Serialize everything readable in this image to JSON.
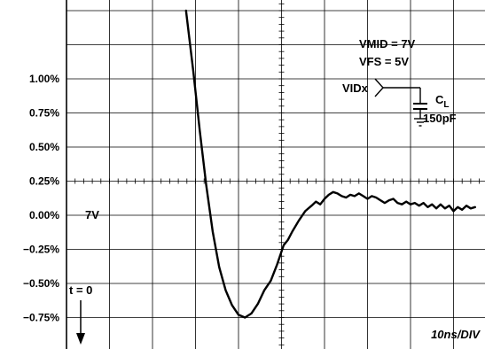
{
  "chart_data": {
    "type": "line",
    "title": "",
    "xlabel": "",
    "ylabel": "",
    "x_unit": "ns",
    "x_per_division": 10,
    "xlim": [
      0,
      95
    ],
    "ylim": [
      -0.875,
      1.5
    ],
    "y_ticks": [
      1.0,
      0.75,
      0.5,
      0.25,
      0.0,
      -0.25,
      -0.5,
      -0.75
    ],
    "y_tick_labels": [
      "1.00%",
      "0.75%",
      "0.50%",
      "0.25%",
      "0.00%",
      "-0.25%",
      "-0.50%",
      "-0.75%"
    ],
    "grid": true,
    "series": [
      {
        "name": "",
        "x": [
          27.8,
          29.5,
          31.0,
          32.5,
          34.0,
          35.5,
          37.0,
          38.5,
          40.0,
          41.5,
          43.0,
          44.5,
          46.0,
          47.5,
          49.0,
          50.5,
          51.5,
          52.5,
          54.0,
          55.5,
          57.0,
          58.0,
          59.0,
          60.0,
          61.0,
          62.0,
          63.0,
          64.0,
          65.0,
          66.0,
          67.0,
          68.0,
          69.0,
          70.0,
          71.0,
          72.0,
          73.0,
          74.0,
          75.0,
          76.0,
          77.0,
          78.0,
          79.0,
          80.0,
          81.0,
          82.0,
          83.0,
          84.0,
          85.0,
          86.0,
          87.0,
          88.0,
          89.0,
          90.0,
          91.0,
          92.0,
          93.0,
          94.0,
          95.0
        ],
        "y": [
          1.5,
          1.05,
          0.62,
          0.22,
          -0.12,
          -0.38,
          -0.55,
          -0.66,
          -0.73,
          -0.75,
          -0.72,
          -0.65,
          -0.55,
          -0.48,
          -0.36,
          -0.22,
          -0.18,
          -0.12,
          -0.04,
          0.03,
          0.07,
          0.1,
          0.08,
          0.12,
          0.15,
          0.17,
          0.16,
          0.14,
          0.13,
          0.15,
          0.14,
          0.16,
          0.14,
          0.12,
          0.14,
          0.13,
          0.11,
          0.09,
          0.11,
          0.12,
          0.09,
          0.08,
          0.1,
          0.08,
          0.09,
          0.07,
          0.09,
          0.06,
          0.08,
          0.05,
          0.08,
          0.05,
          0.07,
          0.03,
          0.06,
          0.04,
          0.07,
          0.05,
          0.06
        ]
      }
    ],
    "annotations": {
      "vmid": "VMID = 7V",
      "vfs": "VFS = 5V",
      "vidx": "VIDx",
      "cl_main": "C",
      "cl_sub": "L",
      "cl_value": "150pF",
      "seven_v": "7V",
      "t0": "t = 0",
      "timebase": "10ns/DIV"
    }
  }
}
